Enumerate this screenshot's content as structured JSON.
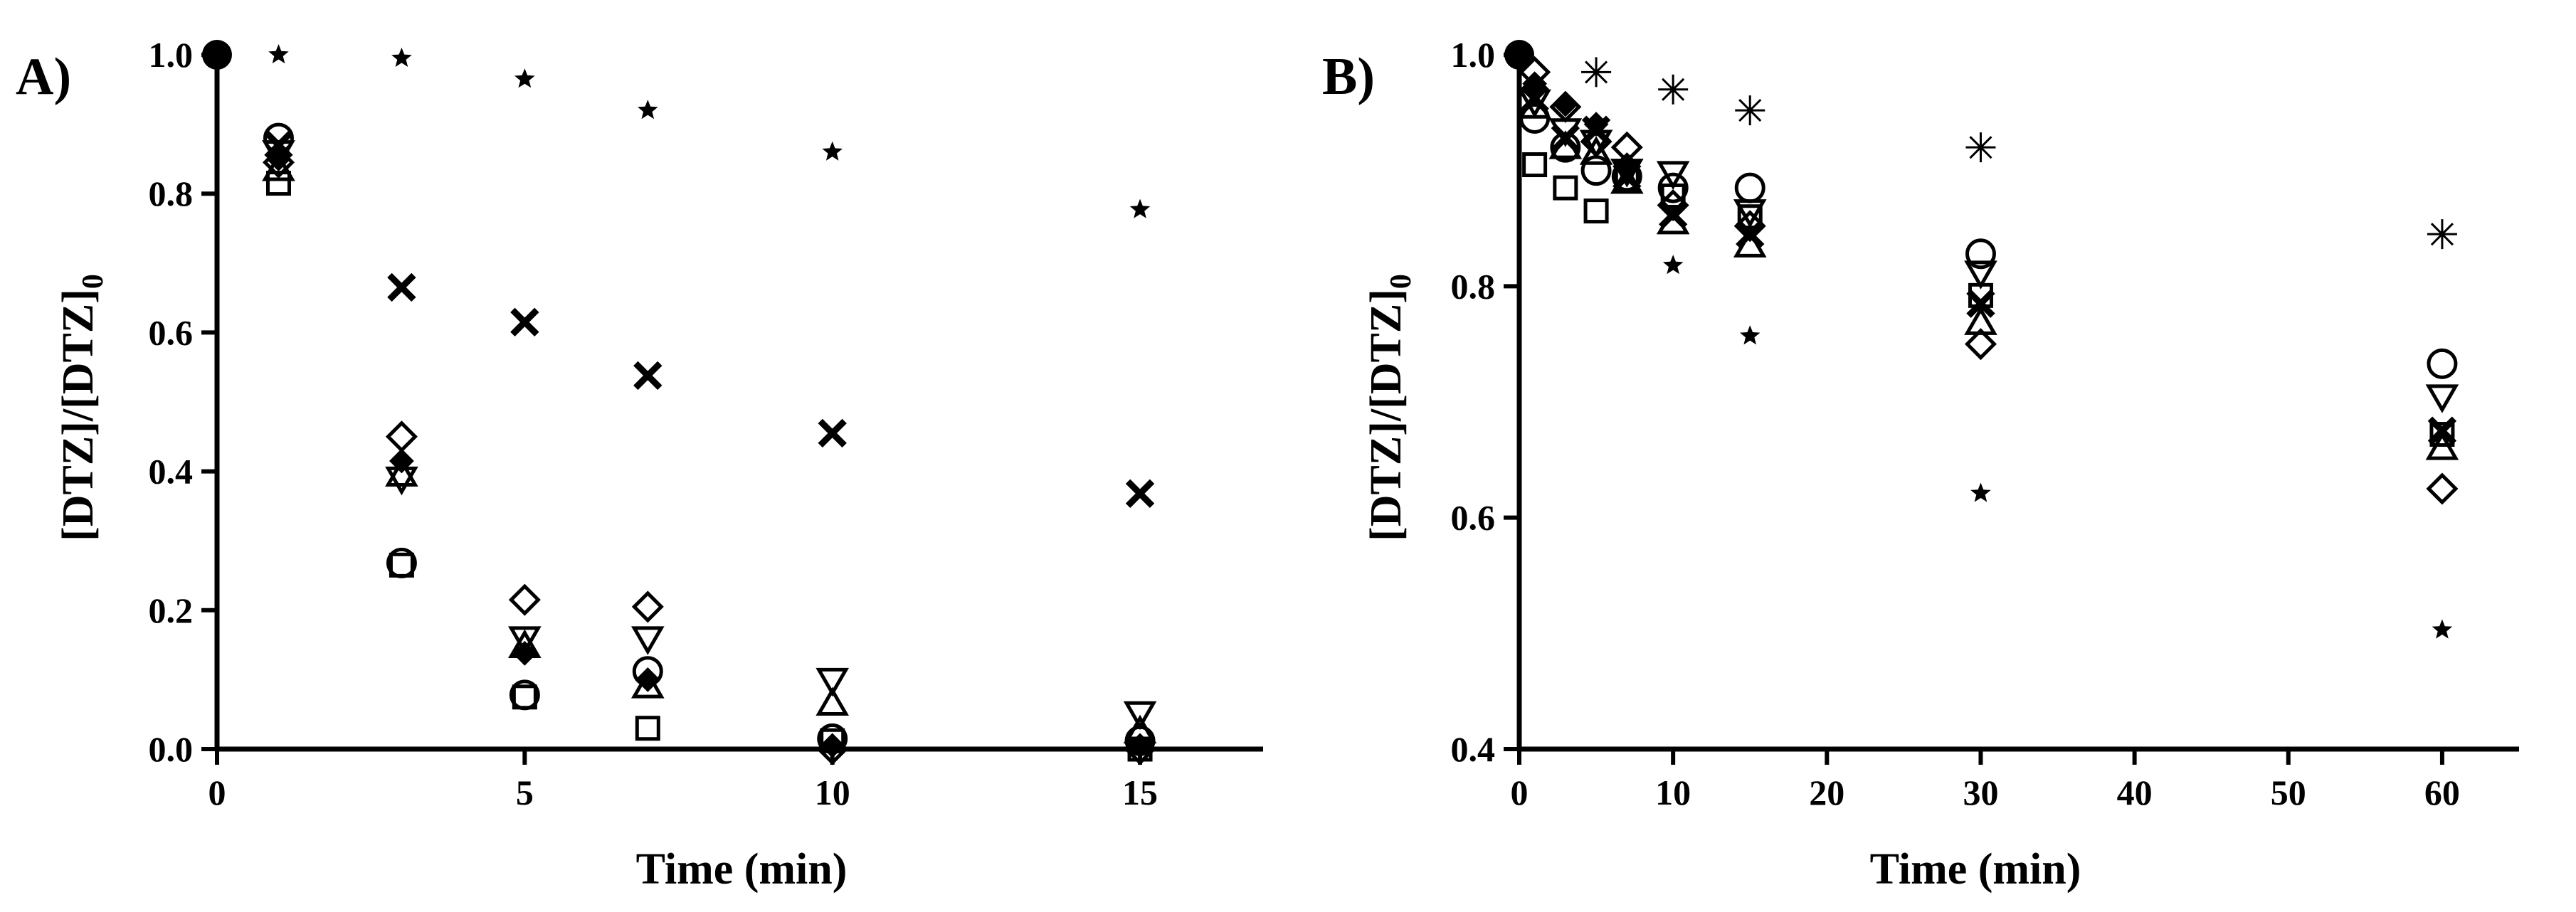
{
  "chart_data": [
    {
      "type": "scatter",
      "panel_label": "A)",
      "xlabel": "Time (min)",
      "ylabel_main": "[DTZ]/[DTZ]",
      "ylabel_subscript": "0",
      "xlim": [
        0,
        17
      ],
      "ylim": [
        0,
        1
      ],
      "xticks": [
        0,
        5,
        10,
        15
      ],
      "xtick_labels": [
        "0",
        "5",
        "10",
        "15"
      ],
      "yticks": [
        0,
        0.2,
        0.4,
        0.6,
        0.8,
        1.0
      ],
      "ytick_labels": [
        "0.0",
        "0.2",
        "0.4",
        "0.6",
        "0.8",
        "1.0"
      ],
      "grid": false,
      "series": [
        {
          "marker": "star",
          "x": [
            0,
            1,
            3,
            5,
            7,
            10,
            15
          ],
          "y": [
            1.0,
            1.0,
            0.995,
            0.965,
            0.92,
            0.86,
            0.777
          ]
        },
        {
          "marker": "x",
          "x": [
            0,
            1,
            3,
            5,
            7,
            10,
            15
          ],
          "y": [
            1.0,
            0.87,
            0.665,
            0.615,
            0.538,
            0.455,
            0.368
          ]
        },
        {
          "marker": "circle",
          "x": [
            0,
            1,
            3,
            5,
            7,
            10,
            15
          ],
          "y": [
            1.0,
            0.88,
            0.268,
            0.078,
            0.112,
            0.015,
            0.012
          ]
        },
        {
          "marker": "square",
          "x": [
            0,
            1,
            3,
            5,
            7,
            10,
            15
          ],
          "y": [
            1.0,
            0.815,
            0.265,
            0.075,
            0.03,
            0.012,
            0.0
          ]
        },
        {
          "marker": "diamond",
          "x": [
            0,
            1,
            3,
            5,
            7,
            10,
            15
          ],
          "y": [
            1.0,
            0.845,
            0.45,
            0.215,
            0.205,
            0.0,
            0.0
          ]
        },
        {
          "marker": "triangle-down",
          "x": [
            0,
            1,
            3,
            5,
            7,
            10,
            15
          ],
          "y": [
            1.0,
            0.86,
            0.39,
            0.16,
            0.16,
            0.1,
            0.052
          ]
        },
        {
          "marker": "triangle-up",
          "x": [
            0,
            1,
            3,
            5,
            7,
            10,
            15
          ],
          "y": [
            1.0,
            0.835,
            0.395,
            0.148,
            0.09,
            0.065,
            0.025
          ]
        },
        {
          "marker": "filled-diamond",
          "x": [
            0,
            1,
            3,
            5,
            7,
            10,
            15
          ],
          "y": [
            1.0,
            0.85,
            0.415,
            0.138,
            0.1,
            0.005,
            0.005
          ]
        }
      ]
    },
    {
      "type": "scatter",
      "panel_label": "B)",
      "xlabel": "Time (min)",
      "ylabel_main": "[DTZ]/[DTZ]",
      "ylabel_subscript": "0",
      "xlim": [
        0,
        65
      ],
      "ylim": [
        0.4,
        1
      ],
      "xticks": [
        0,
        10,
        20,
        30,
        40,
        50,
        60
      ],
      "xtick_labels": [
        "0",
        "10",
        "20",
        "30",
        "40",
        "50",
        "60"
      ],
      "yticks": [
        0.4,
        0.6,
        0.8,
        1.0
      ],
      "ytick_labels": [
        "0.4",
        "0.6",
        "0.8",
        "1.0"
      ],
      "grid": false,
      "series": [
        {
          "marker": "asterisk",
          "x": [
            0,
            5,
            10,
            15,
            30,
            60
          ],
          "y": [
            1.0,
            0.985,
            0.97,
            0.952,
            0.92,
            0.845
          ]
        },
        {
          "marker": "star",
          "x": [
            0,
            10,
            15,
            30,
            60
          ],
          "y": [
            1.0,
            0.818,
            0.757,
            0.621,
            0.503
          ]
        },
        {
          "marker": "circle",
          "x": [
            0,
            1,
            3,
            5,
            7,
            10,
            15,
            30,
            60
          ],
          "y": [
            1.0,
            0.945,
            0.92,
            0.9,
            0.895,
            0.885,
            0.885,
            0.828,
            0.733
          ]
        },
        {
          "marker": "square",
          "x": [
            0,
            1,
            3,
            5,
            7,
            10,
            15,
            30,
            60
          ],
          "y": [
            1.0,
            0.905,
            0.885,
            0.865,
            0.892,
            0.878,
            0.86,
            0.792,
            0.672
          ]
        },
        {
          "marker": "diamond",
          "x": [
            0,
            1,
            3,
            5,
            7,
            10,
            15,
            30,
            60
          ],
          "y": [
            1.0,
            0.985,
            0.955,
            0.925,
            0.92,
            0.87,
            0.852,
            0.75,
            0.625
          ]
        },
        {
          "marker": "triangle-down",
          "x": [
            0,
            1,
            3,
            5,
            7,
            10,
            15,
            30,
            60
          ],
          "y": [
            1.0,
            0.96,
            0.935,
            0.925,
            0.9,
            0.898,
            0.865,
            0.812,
            0.705
          ]
        },
        {
          "marker": "triangle-up",
          "x": [
            0,
            1,
            3,
            5,
            7,
            10,
            15,
            30,
            60
          ],
          "y": [
            1.0,
            0.955,
            0.92,
            0.915,
            0.89,
            0.855,
            0.835,
            0.768,
            0.66
          ]
        },
        {
          "marker": "x",
          "x": [
            0,
            1,
            3,
            5,
            7,
            10,
            15,
            30,
            60
          ],
          "y": [
            1.0,
            0.962,
            0.928,
            0.935,
            0.895,
            0.862,
            0.845,
            0.785,
            0.675
          ]
        },
        {
          "marker": "filled-diamond",
          "x": [
            0,
            1,
            3,
            5,
            7
          ],
          "y": [
            1.0,
            0.975,
            0.957,
            0.94,
            0.905
          ]
        }
      ]
    }
  ]
}
